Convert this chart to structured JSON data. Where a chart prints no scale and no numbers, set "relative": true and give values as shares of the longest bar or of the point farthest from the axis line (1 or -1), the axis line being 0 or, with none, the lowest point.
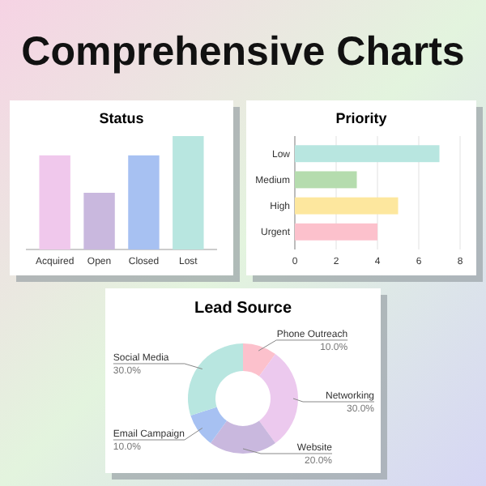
{
  "chart_data": [
    {
      "type": "other",
      "title": "Comprehensive Charts"
    },
    {
      "type": "bar",
      "title": "Status",
      "relative": true,
      "categories": [
        "Acquired",
        "Open",
        "Closed",
        "Lost"
      ],
      "values": [
        0.83,
        0.5,
        0.83,
        1
      ],
      "colors": [
        "#f0c8ec",
        "#c9b8de",
        "#a7c1f2",
        "#b8e6e0"
      ]
    },
    {
      "type": "bar",
      "title": "Priority",
      "orientation": "horizontal",
      "categories": [
        "Low",
        "Medium",
        "High",
        "Urgent"
      ],
      "values": [
        7,
        3,
        5,
        4
      ],
      "colors": [
        "#b8e6e0",
        "#b5dcae",
        "#fde79e",
        "#fcc1cc"
      ],
      "xlim": [
        0,
        8
      ],
      "xticks": [
        0,
        2,
        4,
        6,
        8
      ],
      "grid": "x"
    },
    {
      "type": "donut",
      "title": "Lead Source",
      "categories": [
        "Phone Outreach",
        "Networking",
        "Website",
        "Email Campaign",
        "Social Media"
      ],
      "values": [
        10,
        30,
        20,
        10,
        30
      ],
      "value_labels": [
        "10.0%",
        "30.0%",
        "20.0%",
        "10.0%",
        "30.0%"
      ],
      "colors": [
        "#fcc1cc",
        "#ecc9ee",
        "#c9b8de",
        "#a7c1f2",
        "#b8e6e0"
      ]
    }
  ]
}
